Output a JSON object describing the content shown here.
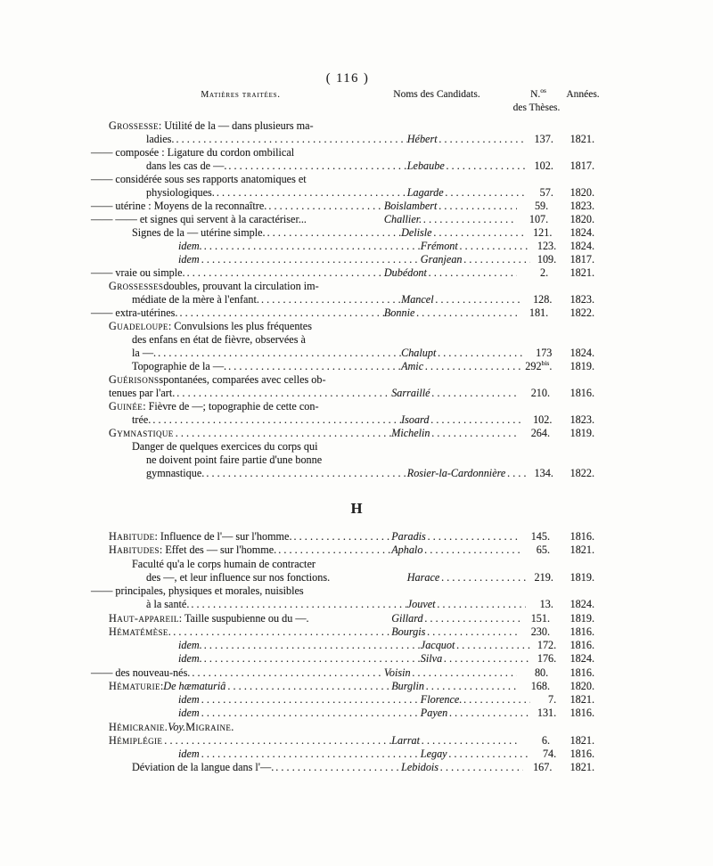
{
  "page": {
    "number_display": "( 116 )",
    "paper_color": "#fdfdfb",
    "ink_color": "#212121"
  },
  "table_headers": {
    "matters": "Matières traitées.",
    "candidates": "Noms des Candidats.",
    "number_abbr": "N.",
    "number_sup": "os",
    "number_line2": "des Thèses.",
    "years": "Années."
  },
  "sections": [
    {
      "letter": "",
      "rows": [
        {
          "i": "i1",
          "head": "Grossesse",
          "text": " : Utilité de la — dans plusieurs ma-"
        },
        {
          "i": "i3",
          "text": "ladies.",
          "dots": true,
          "name": "Hébert",
          "num": "137.",
          "year": "1821."
        },
        {
          "i": "i0",
          "text": "—— composée : Ligature du cordon ombilical"
        },
        {
          "i": "i3",
          "text": "dans les cas de —.",
          "dots": true,
          "name": "Lebaube",
          "num": "102.",
          "year": "1817."
        },
        {
          "i": "i0",
          "text": "—— considérée sous ses rapports anatomiques et"
        },
        {
          "i": "i3",
          "text": "physiologiques.",
          "dots": true,
          "name": "Lagarde",
          "num": "57.",
          "year": "1820."
        },
        {
          "i": "i0",
          "text": "—— utérine : Moyens de la reconnaître.",
          "dots": true,
          "name": "Boislambert",
          "num": "59.",
          "year": "1823."
        },
        {
          "i": "i0",
          "text": "—— —— et signes qui servent à la caractériser...",
          "name": "Challier.",
          "num": "107.",
          "year": "1820."
        },
        {
          "i": "i2",
          "text": "Signes de la — utérine simple.",
          "dots": true,
          "name": "Delisle",
          "num": "121.",
          "year": "1824."
        },
        {
          "i": "i4",
          "em": "idem.",
          "dots": true,
          "name": "Frémont",
          "num": "123.",
          "year": "1824."
        },
        {
          "i": "i4",
          "em": "idem",
          "dots": true,
          "name": "Granjean",
          "num": "109.",
          "year": "1817."
        },
        {
          "i": "i0",
          "text": "—— vraie ou simple.",
          "dots": true,
          "name": "Dubédont",
          "num": "2.",
          "year": "1821."
        },
        {
          "i": "i1",
          "head": "Grossesses",
          "text": " doubles, prouvant la circulation im-"
        },
        {
          "i": "i2",
          "text": "médiate de la mère à l'enfant.",
          "dots": true,
          "name": "Mancel",
          "num": "128.",
          "year": "1823."
        },
        {
          "i": "i0",
          "text": "—— extra-utérines.",
          "dots": true,
          "name": "Bonnie",
          "num": "181.",
          "year": "1822."
        },
        {
          "i": "i1",
          "head": "Guadeloupe",
          "text": " : Convulsions les plus fréquentes"
        },
        {
          "i": "i2",
          "text": "des enfans en état de fièvre, observées à"
        },
        {
          "i": "i2",
          "text": "la —.",
          "dots": true,
          "name": "Chalupt",
          "num": "173",
          "year": "1824."
        },
        {
          "i": "i2",
          "text": "Topographie de la —.",
          "dots": true,
          "name": "Amic",
          "num": "292",
          "sup": "bis",
          "num2": ".",
          "year": "1819."
        },
        {
          "i": "i1",
          "head": "Guérisons",
          "text": " spontanées, comparées avec celles ob-"
        },
        {
          "i": "i1",
          "text": "tenues par l'art.",
          "dots": true,
          "name": "Sarraillé",
          "num": "210.",
          "year": "1816."
        },
        {
          "i": "i1",
          "head": "Guinée",
          "text": " : Fièvre de —; topographie de cette con-"
        },
        {
          "i": "i2",
          "text": "trée.",
          "dots": true,
          "name": "Isoard",
          "num": "102.",
          "year": "1823."
        },
        {
          "i": "i1",
          "head": "Gymnastique",
          "dots": true,
          "name": "Michelin",
          "num": "264.",
          "year": "1819."
        },
        {
          "i": "i2",
          "text": "Danger de quelques exercices du corps qui"
        },
        {
          "i": "i3",
          "text": "ne doivent point faire partie d'une bonne"
        },
        {
          "i": "i3",
          "text": "gymnastique.",
          "dots": true,
          "name": "Rosier-la-Cardonnière",
          "num": "134.",
          "year": "1822."
        }
      ]
    },
    {
      "letter": "H",
      "rows": [
        {
          "i": "i1",
          "head": "Habitude",
          "text": " : Influence de l'— sur l'homme.",
          "dots": true,
          "name": "Paradis",
          "num": "145.",
          "year": "1816."
        },
        {
          "i": "i1",
          "head": "Habitudes",
          "text": " : Effet des — sur l'homme.",
          "dots": true,
          "name": "Aphalo",
          "num": "65.",
          "year": "1821."
        },
        {
          "i": "i2",
          "text": "Faculté qu'a le corps humain de contracter"
        },
        {
          "i": "i3",
          "text": "des —, et leur influence sur nos fonctions.",
          "name": "Harace",
          "num": "219.",
          "year": "1819."
        },
        {
          "i": "i0",
          "text": "—— principales, physiques et morales, nuisibles"
        },
        {
          "i": "i3",
          "text": "à la santé.",
          "dots": true,
          "name": "Jouvet",
          "num": "13.",
          "year": "1824."
        },
        {
          "i": "i1",
          "head": "Haut-appareil",
          "text": " : Taille suspubienne ou du —.",
          "name": "Gillard",
          "num": "151.",
          "year": "1819."
        },
        {
          "i": "i1",
          "head": "Hématémèse.",
          "dots": true,
          "name": "Bourgis",
          "num": "230.",
          "year": "1816."
        },
        {
          "i": "i4",
          "em": "idem.",
          "dots": true,
          "name": "Jacquot",
          "num": "172.",
          "year": "1816."
        },
        {
          "i": "i4",
          "em": "idem.",
          "dots": true,
          "name": "Silva",
          "num": "176.",
          "year": "1824."
        },
        {
          "i": "i0",
          "text": "—— des nouveau-nés.",
          "dots": true,
          "name": "Voisin",
          "num": "80.",
          "year": "1816."
        },
        {
          "i": "i1",
          "head": "Hématurie",
          "text": " : ",
          "em": "De hæmaturiâ",
          "dots": true,
          "name": "Burglin",
          "num": "168.",
          "year": "1820."
        },
        {
          "i": "i4",
          "em": "idem",
          "dots": true,
          "name": "Florence.",
          "num": "7.",
          "year": "1821."
        },
        {
          "i": "i4",
          "em": "idem",
          "dots": true,
          "name": "Payen",
          "num": "131.",
          "year": "1816."
        },
        {
          "i": "i1",
          "head": "Hémicranie.",
          "em": " Voy. ",
          "head2": "Migraine."
        },
        {
          "i": "i1",
          "head": "Hémiplégie",
          "dots": true,
          "name": "Larrat",
          "num": "6.",
          "year": "1821."
        },
        {
          "i": "i4",
          "em": "idem",
          "dots": true,
          "name": "Legay",
          "num": "74.",
          "year": "1816."
        },
        {
          "i": "i2",
          "text": "Déviation de la langue dans l'—.",
          "dots": true,
          "name": "Lebidois",
          "num": "167.",
          "year": "1821."
        }
      ]
    }
  ]
}
